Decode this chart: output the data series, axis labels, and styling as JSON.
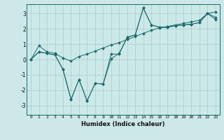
{
  "xlabel": "Humidex (Indice chaleur)",
  "background_color": "#cce8e8",
  "line_color": "#1a6b6b",
  "grid_color": "#aacccc",
  "xlim": [
    -0.5,
    23.5
  ],
  "ylim": [
    -3.6,
    3.6
  ],
  "yticks": [
    -3,
    -2,
    -1,
    0,
    1,
    2,
    3
  ],
  "xticks": [
    0,
    1,
    2,
    3,
    4,
    5,
    6,
    7,
    8,
    9,
    10,
    11,
    12,
    13,
    14,
    15,
    16,
    17,
    18,
    19,
    20,
    21,
    22,
    23
  ],
  "x": [
    0,
    1,
    2,
    3,
    4,
    5,
    6,
    7,
    8,
    9,
    10,
    11,
    12,
    13,
    14,
    15,
    16,
    17,
    18,
    19,
    20,
    21,
    22,
    23
  ],
  "series1": [
    0.0,
    0.9,
    0.5,
    0.4,
    0.1,
    -0.1,
    0.2,
    0.35,
    0.55,
    0.75,
    0.95,
    1.1,
    1.3,
    1.5,
    1.7,
    1.9,
    2.05,
    2.15,
    2.25,
    2.35,
    2.45,
    2.55,
    3.0,
    3.1
  ],
  "series2": [
    0.0,
    0.5,
    0.4,
    0.3,
    -0.65,
    -2.6,
    -1.3,
    -2.7,
    -1.55,
    -1.6,
    0.05,
    0.4,
    1.45,
    1.6,
    3.35,
    2.25,
    2.1,
    2.1,
    2.2,
    2.25,
    2.3,
    2.4,
    3.0,
    2.6
  ],
  "series3": [
    0.0,
    0.5,
    0.4,
    0.3,
    -0.65,
    -2.6,
    -1.3,
    -2.7,
    -1.55,
    -1.6,
    0.35,
    0.35,
    1.45,
    1.6,
    3.35,
    2.25,
    2.1,
    2.1,
    2.2,
    2.25,
    2.3,
    2.4,
    3.0,
    2.75
  ]
}
